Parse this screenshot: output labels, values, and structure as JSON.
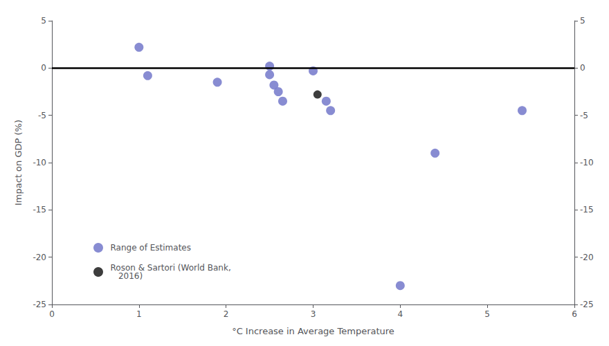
{
  "chart_data": {
    "type": "scatter",
    "x_label": "°C Increase in Average Temperature",
    "y_label": "Impact on GDP (%)",
    "series": [
      {
        "name": "Range of Estimates",
        "color": "#7b7fcd",
        "x": [
          1.0,
          1.1,
          1.9,
          2.5,
          2.5,
          2.55,
          2.6,
          2.65,
          3.0,
          3.2,
          3.15,
          4.0,
          4.4,
          5.4
        ],
        "values": [
          2.2,
          -0.8,
          -1.5,
          0.2,
          -0.7,
          -1.8,
          -2.5,
          -3.5,
          -0.3,
          -4.5,
          -3.5,
          -23.0,
          -9.0,
          -4.5
        ]
      },
      {
        "name": "Roson & Sartori (World Bank,\n   2016)",
        "color": "#3d3d3d",
        "x": [
          3.05
        ],
        "values": [
          -2.8
        ]
      }
    ],
    "hline": 0,
    "xlim": [
      0,
      6
    ],
    "xticks": [
      0,
      1,
      2,
      3,
      4,
      5,
      6
    ],
    "ylim": [
      -25,
      5
    ],
    "yticks": [
      5,
      0,
      -5,
      -10,
      -15,
      -20,
      -25
    ],
    "y2lim": [
      -25,
      5
    ],
    "y2ticks": [
      5,
      0,
      -5,
      -10,
      -15,
      -20,
      -25
    ],
    "grid": false,
    "legend": "lower left"
  }
}
